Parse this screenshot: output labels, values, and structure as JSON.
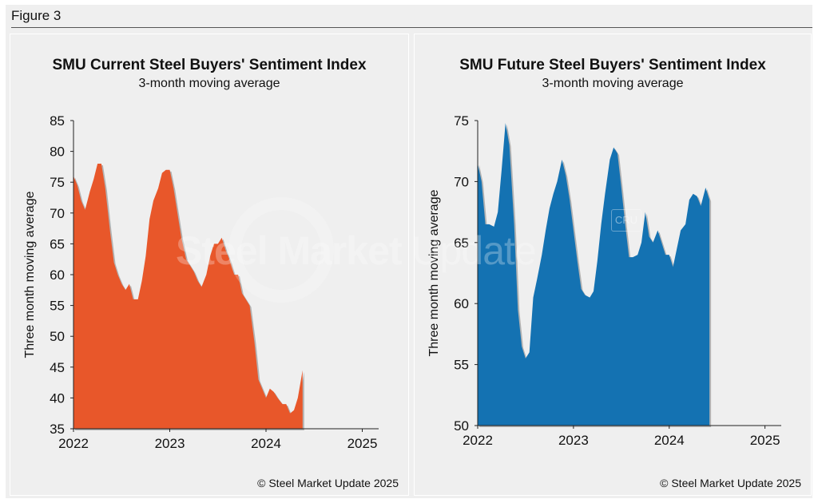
{
  "figure_label": "Figure 3",
  "watermark": {
    "bold": "Steel Market",
    "light": " Update",
    "cru": "CRU"
  },
  "chart_data": [
    {
      "type": "area",
      "title": "SMU Current Steel Buyers' Sentiment Index",
      "subtitle": "3-month moving average",
      "ylabel": "Three month moving average",
      "xlabel": "",
      "ylim": [
        35,
        85
      ],
      "yticks": [
        35,
        40,
        45,
        50,
        55,
        60,
        65,
        70,
        75,
        80,
        85
      ],
      "xlim": [
        2022.0,
        2025.17
      ],
      "xticks": [
        "2022",
        "2023",
        "2024",
        "2025"
      ],
      "grid": false,
      "color": "#E8572A",
      "copyright": "© Steel Market Update 2025",
      "points": [
        [
          2022.0,
          76
        ],
        [
          2022.04,
          74.5
        ],
        [
          2022.08,
          72
        ],
        [
          2022.12,
          70.5
        ],
        [
          2022.17,
          73.5
        ],
        [
          2022.21,
          75.5
        ],
        [
          2022.25,
          78
        ],
        [
          2022.29,
          78
        ],
        [
          2022.33,
          74
        ],
        [
          2022.38,
          67
        ],
        [
          2022.42,
          62
        ],
        [
          2022.46,
          60
        ],
        [
          2022.5,
          58.5
        ],
        [
          2022.54,
          57.5
        ],
        [
          2022.58,
          58.5
        ],
        [
          2022.62,
          56
        ],
        [
          2022.67,
          56
        ],
        [
          2022.71,
          59
        ],
        [
          2022.75,
          63
        ],
        [
          2022.79,
          69
        ],
        [
          2022.83,
          72
        ],
        [
          2022.88,
          74
        ],
        [
          2022.92,
          76.5
        ],
        [
          2022.96,
          77
        ],
        [
          2023.0,
          77
        ],
        [
          2023.04,
          74
        ],
        [
          2023.08,
          70
        ],
        [
          2023.12,
          66
        ],
        [
          2023.17,
          62.5
        ],
        [
          2023.21,
          61.5
        ],
        [
          2023.25,
          60.5
        ],
        [
          2023.29,
          59
        ],
        [
          2023.33,
          58
        ],
        [
          2023.38,
          60
        ],
        [
          2023.42,
          63
        ],
        [
          2023.46,
          65
        ],
        [
          2023.5,
          65
        ],
        [
          2023.54,
          66
        ],
        [
          2023.58,
          64
        ],
        [
          2023.62,
          62.5
        ],
        [
          2023.67,
          60
        ],
        [
          2023.71,
          60
        ],
        [
          2023.75,
          57
        ],
        [
          2023.79,
          56
        ],
        [
          2023.83,
          55
        ],
        [
          2023.88,
          49
        ],
        [
          2023.92,
          43
        ],
        [
          2023.96,
          41.5
        ],
        [
          2024.0,
          40
        ],
        [
          2024.04,
          41.5
        ],
        [
          2024.08,
          41
        ],
        [
          2024.12,
          40
        ],
        [
          2024.17,
          39
        ],
        [
          2024.21,
          39
        ],
        [
          2024.25,
          37.5
        ],
        [
          2024.29,
          38
        ],
        [
          2024.33,
          40
        ],
        [
          2024.38,
          44.5
        ],
        [
          2024.38,
          35
        ]
      ]
    },
    {
      "type": "area",
      "title": "SMU Future Steel Buyers' Sentiment Index",
      "subtitle": "3-month moving average",
      "ylabel": "Three month moving average",
      "xlabel": "",
      "ylim": [
        50,
        75
      ],
      "yticks": [
        50,
        55,
        60,
        65,
        70,
        75
      ],
      "xlim": [
        2022.0,
        2025.17
      ],
      "xticks": [
        "2022",
        "2023",
        "2024",
        "2025"
      ],
      "grid": false,
      "color": "#1472B2",
      "copyright": "© Steel Market Update 2025",
      "points": [
        [
          2022.0,
          71.5
        ],
        [
          2022.04,
          70
        ],
        [
          2022.08,
          66.5
        ],
        [
          2022.12,
          66.5
        ],
        [
          2022.17,
          66.3
        ],
        [
          2022.21,
          67.5
        ],
        [
          2022.25,
          71
        ],
        [
          2022.29,
          74.8
        ],
        [
          2022.33,
          73
        ],
        [
          2022.38,
          66.5
        ],
        [
          2022.42,
          59.5
        ],
        [
          2022.46,
          56.5
        ],
        [
          2022.5,
          55.5
        ],
        [
          2022.54,
          56
        ],
        [
          2022.58,
          60.5
        ],
        [
          2022.62,
          62
        ],
        [
          2022.67,
          64
        ],
        [
          2022.71,
          66
        ],
        [
          2022.75,
          67.8
        ],
        [
          2022.79,
          69
        ],
        [
          2022.83,
          70
        ],
        [
          2022.88,
          71.8
        ],
        [
          2022.92,
          70.5
        ],
        [
          2022.96,
          68.5
        ],
        [
          2023.0,
          66
        ],
        [
          2023.04,
          63.5
        ],
        [
          2023.08,
          61.2
        ],
        [
          2023.12,
          60.7
        ],
        [
          2023.17,
          60.5
        ],
        [
          2023.21,
          61
        ],
        [
          2023.25,
          63.5
        ],
        [
          2023.29,
          66.5
        ],
        [
          2023.33,
          69
        ],
        [
          2023.38,
          71.8
        ],
        [
          2023.42,
          72.8
        ],
        [
          2023.46,
          72.3
        ],
        [
          2023.5,
          69.5
        ],
        [
          2023.54,
          66.5
        ],
        [
          2023.58,
          63.8
        ],
        [
          2023.62,
          63.8
        ],
        [
          2023.67,
          64
        ],
        [
          2023.71,
          65
        ],
        [
          2023.75,
          67.5
        ],
        [
          2023.79,
          65.5
        ],
        [
          2023.83,
          65
        ],
        [
          2023.88,
          66
        ],
        [
          2023.92,
          65
        ],
        [
          2023.96,
          64
        ],
        [
          2024.0,
          64
        ],
        [
          2024.04,
          63
        ],
        [
          2024.08,
          64.5
        ],
        [
          2024.12,
          66
        ],
        [
          2024.17,
          66.5
        ],
        [
          2024.21,
          68.5
        ],
        [
          2024.25,
          69
        ],
        [
          2024.29,
          68.8
        ],
        [
          2024.33,
          68
        ],
        [
          2024.38,
          69.5
        ],
        [
          2024.42,
          68.5
        ],
        [
          2024.42,
          50
        ]
      ]
    }
  ]
}
